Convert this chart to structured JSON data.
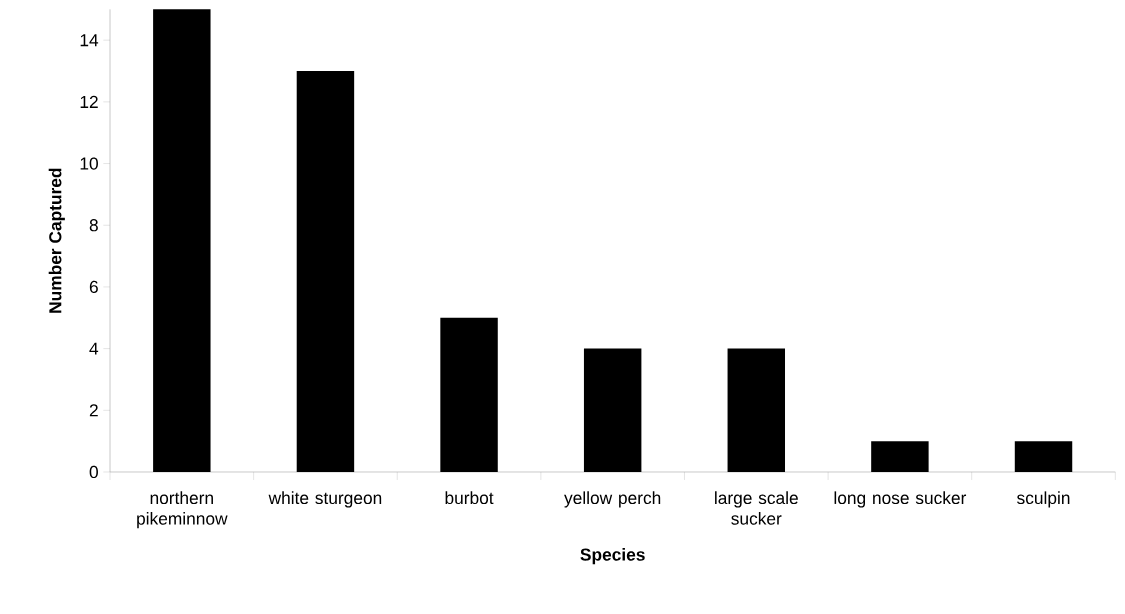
{
  "chart_data": {
    "type": "bar",
    "xlabel": "Species",
    "ylabel": "Number Captured",
    "categories": [
      "northern pikeminnow",
      "white sturgeon",
      "burbot",
      "yellow perch",
      "large scale sucker",
      "long nose sucker",
      "sculpin"
    ],
    "values": [
      15,
      13,
      5,
      4,
      4,
      1,
      1
    ],
    "color": "#000000",
    "ylim": [
      0,
      15
    ],
    "yticks": [
      0,
      2,
      4,
      6,
      8,
      10,
      12,
      14
    ],
    "grid": false
  }
}
